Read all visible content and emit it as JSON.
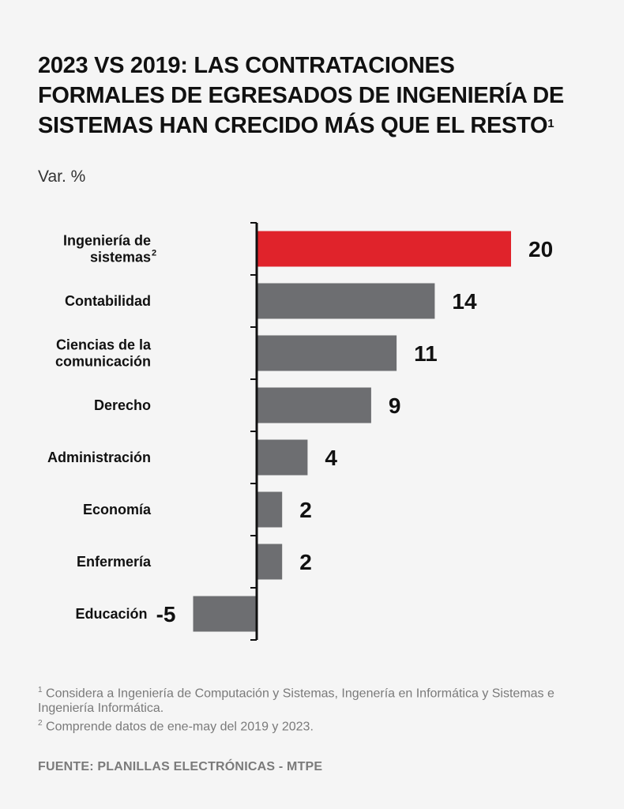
{
  "title_lines": [
    "2023 VS 2019: LAS CONTRATACIONES",
    "FORMALES DE EGRESADOS DE INGENIERÍA DE",
    "SISTEMAS HAN CRECIDO MÁS QUE EL RESTO"
  ],
  "title_footnote_mark": "1",
  "unit_label": "Var. %",
  "colors": {
    "highlight": "#e0232b",
    "default": "#6d6e71",
    "axis": "#111111"
  },
  "chart_data": {
    "type": "bar",
    "orientation": "horizontal",
    "categories": [
      "Ingeniería de sistemas",
      "Contabilidad",
      "Ciencias de la comunicación",
      "Derecho",
      "Administración",
      "Economía",
      "Enfermería",
      "Educación"
    ],
    "category_display": [
      {
        "lines": [
          "Ingeniería de",
          "sistemas"
        ],
        "footnote": "2"
      },
      {
        "lines": [
          "Contabilidad"
        ],
        "footnote": ""
      },
      {
        "lines": [
          "Ciencias de la",
          "comunicación"
        ],
        "footnote": ""
      },
      {
        "lines": [
          "Derecho"
        ],
        "footnote": ""
      },
      {
        "lines": [
          "Administración"
        ],
        "footnote": ""
      },
      {
        "lines": [
          "Economía"
        ],
        "footnote": ""
      },
      {
        "lines": [
          "Enfermería"
        ],
        "footnote": ""
      },
      {
        "lines": [
          "Educación"
        ],
        "footnote": ""
      }
    ],
    "values": [
      20,
      14,
      11,
      9,
      4,
      2,
      2,
      -5
    ],
    "value_labels": [
      "20",
      "14",
      "11",
      "9",
      "4",
      "2",
      "2",
      "-5"
    ],
    "highlight_index": 0,
    "ylabel": "Var. %",
    "xlim": [
      -5,
      20
    ],
    "grid": false,
    "legend": "none"
  },
  "footnotes": [
    {
      "mark": "1",
      "text": " Considera a Ingeniería de Computación y Sistemas, Ingenería en Informática y Sistemas e Ingeniería Informática."
    },
    {
      "mark": "2",
      "text": " Comprende datos de ene-may del 2019 y 2023."
    }
  ],
  "source": "FUENTE: PLANILLAS ELECTRÓNICAS - MTPE"
}
